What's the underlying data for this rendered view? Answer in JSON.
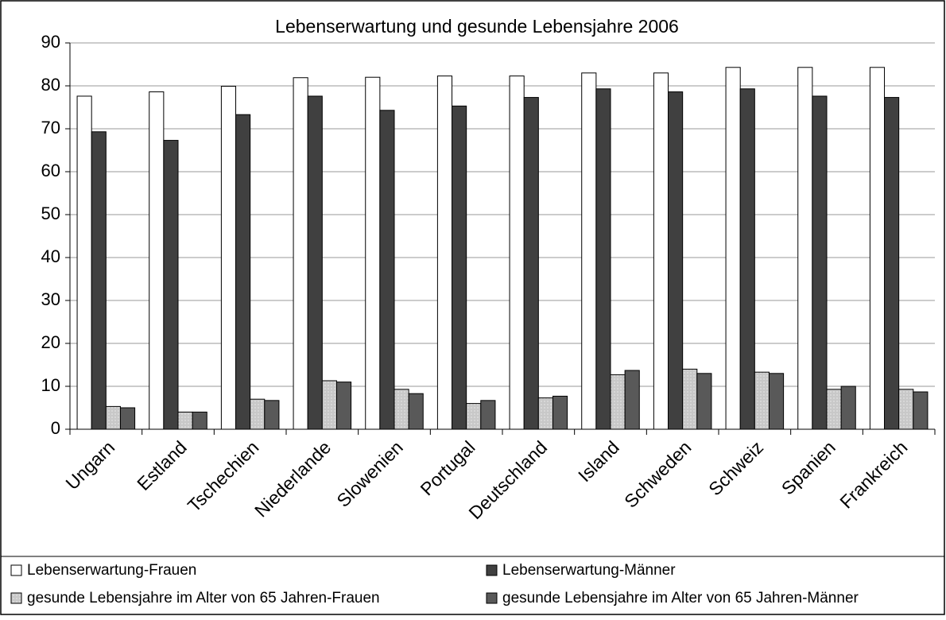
{
  "chart_data": {
    "type": "bar",
    "title": "Lebenserwartung und gesunde Lebensjahre 2006",
    "categories": [
      "Ungarn",
      "Estland",
      "Tschechien",
      "Niederlande",
      "Slowenien",
      "Portugal",
      "Deutschland",
      "Island",
      "Schweden",
      "Schweiz",
      "Spanien",
      "Frankreich"
    ],
    "series": [
      {
        "name": "Lebenserwartung-Frauen",
        "color": "#ffffff",
        "values": [
          77.6,
          78.6,
          79.9,
          81.9,
          82.0,
          82.3,
          82.3,
          83.0,
          83.0,
          84.3,
          84.3,
          84.3
        ]
      },
      {
        "name": "Lebenserwartung-Männer",
        "color": "#404040",
        "values": [
          69.3,
          67.3,
          73.3,
          77.6,
          74.3,
          75.3,
          77.3,
          79.3,
          78.6,
          79.3,
          77.6,
          77.3
        ]
      },
      {
        "name": "gesunde Lebensjahre im Alter von 65 Jahren-Frauen",
        "color": "#c8c8c8",
        "values": [
          5.3,
          4.0,
          7.0,
          11.3,
          9.3,
          6.0,
          7.3,
          12.7,
          14.0,
          13.3,
          9.3,
          9.3
        ]
      },
      {
        "name": "gesunde Lebensjahre im Alter von 65 Jahren-Männer",
        "color": "#595959",
        "values": [
          5.0,
          4.0,
          6.7,
          11.0,
          8.3,
          6.7,
          7.7,
          13.7,
          13.0,
          13.0,
          10.0,
          8.7
        ]
      }
    ],
    "ylim": [
      0,
      90
    ],
    "yticks": [
      0,
      10,
      20,
      30,
      40,
      50,
      60,
      70,
      80,
      90
    ],
    "grid": true
  }
}
